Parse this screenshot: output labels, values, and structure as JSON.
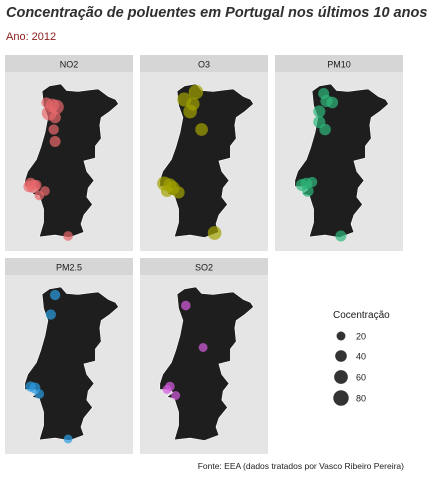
{
  "title": "Concentração de poluentes em Portugal nos últimos 10 anos",
  "subtitle": "Ano: 2012",
  "caption": "Fonte: EEA (dados tratados por Vasco Ribeiro Pereira)",
  "colors": {
    "panel_bg": "#e5e5e5",
    "strip_bg": "#d6d6d6",
    "map": "#1e1e1e",
    "NO2": "#e8686b",
    "O3": "#a3a300",
    "PM10": "#2db87a",
    "PM2.5": "#2b9de4",
    "SO2": "#d65ce0"
  },
  "chart_data": {
    "type": "scatter",
    "title": "Concentração de poluentes em Portugal nos últimos 10 anos",
    "subtitle": "Ano: 2012",
    "facets": [
      "NO2",
      "O3",
      "PM10",
      "PM2.5",
      "SO2"
    ],
    "legend": {
      "title": "Cocentração",
      "position": "right",
      "sizes": [
        20,
        40,
        60,
        80
      ],
      "labels": [
        "20",
        "40",
        "60",
        "80"
      ]
    },
    "grid": false,
    "series": [
      {
        "name": "NO2",
        "color": "#e8686b",
        "points": [
          {
            "lon": -8.7,
            "lat": 41.5,
            "value": 30
          },
          {
            "lon": -8.5,
            "lat": 41.4,
            "value": 60
          },
          {
            "lon": -8.35,
            "lat": 41.35,
            "value": 70
          },
          {
            "lon": -8.6,
            "lat": 41.15,
            "value": 75
          },
          {
            "lon": -8.4,
            "lat": 41.0,
            "value": 40
          },
          {
            "lon": -8.45,
            "lat": 40.6,
            "value": 30
          },
          {
            "lon": -8.4,
            "lat": 40.2,
            "value": 35
          },
          {
            "lon": -9.25,
            "lat": 38.8,
            "value": 40
          },
          {
            "lon": -9.05,
            "lat": 38.75,
            "value": 30
          },
          {
            "lon": -9.15,
            "lat": 38.7,
            "value": 55
          },
          {
            "lon": -9.3,
            "lat": 38.7,
            "value": 40
          },
          {
            "lon": -8.95,
            "lat": 38.4,
            "value": 25
          },
          {
            "lon": -8.75,
            "lat": 38.55,
            "value": 25
          },
          {
            "lon": -7.95,
            "lat": 37.05,
            "value": 25
          }
        ]
      },
      {
        "name": "O3",
        "color": "#a3a300",
        "points": [
          {
            "lon": -8.2,
            "lat": 41.85,
            "value": 70
          },
          {
            "lon": -8.6,
            "lat": 41.6,
            "value": 65
          },
          {
            "lon": -8.3,
            "lat": 41.45,
            "value": 55
          },
          {
            "lon": -8.4,
            "lat": 41.2,
            "value": 60
          },
          {
            "lon": -8.0,
            "lat": 40.6,
            "value": 50
          },
          {
            "lon": -9.3,
            "lat": 38.8,
            "value": 65
          },
          {
            "lon": -9.1,
            "lat": 38.75,
            "value": 55
          },
          {
            "lon": -9.0,
            "lat": 38.65,
            "value": 60
          },
          {
            "lon": -9.2,
            "lat": 38.55,
            "value": 45
          },
          {
            "lon": -8.8,
            "lat": 38.5,
            "value": 45
          },
          {
            "lon": -7.55,
            "lat": 37.15,
            "value": 60
          }
        ]
      },
      {
        "name": "PM10",
        "color": "#2db87a",
        "points": [
          {
            "lon": -8.45,
            "lat": 41.8,
            "value": 35
          },
          {
            "lon": -8.35,
            "lat": 41.55,
            "value": 45
          },
          {
            "lon": -8.15,
            "lat": 41.5,
            "value": 40
          },
          {
            "lon": -8.6,
            "lat": 41.2,
            "value": 45
          },
          {
            "lon": -8.6,
            "lat": 40.85,
            "value": 45
          },
          {
            "lon": -8.4,
            "lat": 40.6,
            "value": 40
          },
          {
            "lon": -9.2,
            "lat": 38.75,
            "value": 45
          },
          {
            "lon": -9.05,
            "lat": 38.8,
            "value": 40
          },
          {
            "lon": -8.85,
            "lat": 38.85,
            "value": 30
          },
          {
            "lon": -9.0,
            "lat": 38.55,
            "value": 40
          },
          {
            "lon": -7.85,
            "lat": 37.05,
            "value": 35
          }
        ]
      },
      {
        "name": "PM2.5",
        "color": "#2b9de4",
        "points": [
          {
            "lon": -8.4,
            "lat": 41.85,
            "value": 30
          },
          {
            "lon": -8.55,
            "lat": 41.2,
            "value": 30
          },
          {
            "lon": -9.25,
            "lat": 38.8,
            "value": 30
          },
          {
            "lon": -9.1,
            "lat": 38.75,
            "value": 35
          },
          {
            "lon": -8.95,
            "lat": 38.55,
            "value": 25
          },
          {
            "lon": -7.95,
            "lat": 37.05,
            "value": 20
          }
        ]
      },
      {
        "name": "SO2",
        "color": "#d65ce0",
        "points": [
          {
            "lon": -8.55,
            "lat": 41.5,
            "value": 25
          },
          {
            "lon": -7.95,
            "lat": 40.1,
            "value": 20
          },
          {
            "lon": -9.1,
            "lat": 38.8,
            "value": 25
          },
          {
            "lon": -9.2,
            "lat": 38.7,
            "value": 20
          },
          {
            "lon": -8.9,
            "lat": 38.5,
            "value": 20
          }
        ]
      }
    ]
  }
}
